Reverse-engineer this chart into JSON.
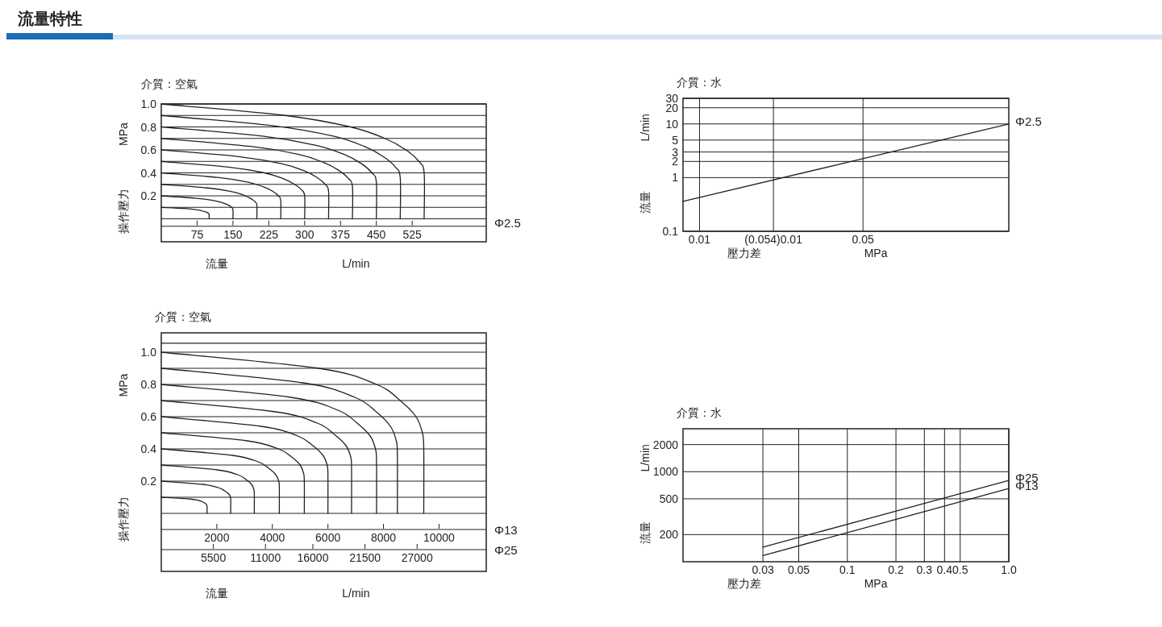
{
  "chart_data": [
    {
      "type": "line",
      "title": "流量特性",
      "subtitle": "介質：空氣",
      "xlabel": "流量 L/min",
      "ylabel": "操作壓力 MPa",
      "xlim": [
        0,
        680
      ],
      "ylim": [
        -0.2,
        1
      ],
      "xticks": [
        75,
        150,
        225,
        300,
        375,
        450,
        525
      ],
      "yticks": [
        {
          "value": 0,
          "label": null
        },
        {
          "value": 0.1,
          "label": null
        },
        0.2,
        {
          "value": 0.3,
          "label": null
        },
        0.4,
        {
          "value": 0.5,
          "label": null
        },
        0.6,
        {
          "value": 0.7,
          "label": null
        },
        0.8,
        {
          "value": 0.9,
          "label": null
        },
        {
          "value": 1,
          "label": "1.0"
        }
      ],
      "grid": "y",
      "ref_lines": [
        {
          "axis": "y",
          "value": -0.065
        }
      ],
      "annotations": [
        "Φ2.5"
      ],
      "series": [
        {
          "color": "#222222",
          "x": [
            0,
            47,
            72,
            85,
            93,
            98,
            100,
            100
          ],
          "values": [
            0.1,
            0.09,
            0.08,
            0.07,
            0.06,
            0.05,
            0.04,
            0
          ]
        },
        {
          "color": "#222222",
          "x": [
            0,
            71,
            108,
            128,
            140,
            147,
            150,
            150
          ],
          "values": [
            0.2,
            0.18,
            0.16,
            0.14,
            0.12,
            0.1,
            0.08,
            0
          ]
        },
        {
          "color": "#222222",
          "x": [
            0,
            94,
            144,
            170,
            186,
            196,
            200,
            200
          ],
          "values": [
            0.3,
            0.27,
            0.24,
            0.21,
            0.18,
            0.15,
            0.12,
            0
          ]
        },
        {
          "color": "#222222",
          "x": [
            0,
            118,
            180,
            213,
            233,
            245,
            250,
            250
          ],
          "values": [
            0.4,
            0.36,
            0.32,
            0.28,
            0.24,
            0.2,
            0.16,
            0
          ]
        },
        {
          "color": "#222222",
          "x": [
            0,
            141,
            216,
            255,
            279,
            294,
            300,
            300
          ],
          "values": [
            0.5,
            0.45,
            0.4,
            0.35,
            0.3,
            0.25,
            0.2,
            0
          ]
        },
        {
          "color": "#222222",
          "x": [
            0,
            165,
            252,
            298,
            326,
            343,
            350,
            350
          ],
          "values": [
            0.6,
            0.54,
            0.48,
            0.42,
            0.36,
            0.3,
            0.24,
            0
          ]
        },
        {
          "color": "#222222",
          "x": [
            0,
            188,
            288,
            340,
            372,
            392,
            400,
            400
          ],
          "values": [
            0.7,
            0.63,
            0.56,
            0.49,
            0.42,
            0.35,
            0.28,
            0
          ]
        },
        {
          "color": "#222222",
          "x": [
            0,
            212,
            324,
            383,
            419,
            441,
            450,
            450
          ],
          "values": [
            0.8,
            0.72,
            0.64,
            0.56,
            0.48,
            0.4,
            0.32,
            0
          ]
        },
        {
          "color": "#222222",
          "x": [
            0,
            235,
            360,
            425,
            465,
            490,
            500,
            500
          ],
          "values": [
            0.9,
            0.81,
            0.72,
            0.63,
            0.54,
            0.45,
            0.36,
            0
          ]
        },
        {
          "color": "#222222",
          "x": [
            0,
            259,
            396,
            468,
            512,
            539,
            550,
            550
          ],
          "values": [
            1,
            0.9,
            0.8,
            0.7,
            0.6,
            0.5,
            0.4,
            0
          ]
        }
      ]
    },
    {
      "type": "line",
      "title": "介質：水",
      "xlabel": "壓力差 MPa",
      "ylabel": "流量 L/min",
      "log": "xy",
      "xlim": [
        0.0085,
        0.21
      ],
      "ylim": [
        0.1,
        30
      ],
      "xticks": [
        0.01,
        {
          "value": 0.0207,
          "label": "(0.054)0.01"
        },
        0.05
      ],
      "yticks": [
        0.1,
        1,
        2,
        3,
        5,
        10,
        20,
        30
      ],
      "grid": true,
      "series": [
        {
          "name": "Φ2.5",
          "color": "#222222",
          "x": [
            0.0085,
            0.21
          ],
          "values": [
            0.36,
            10
          ]
        }
      ]
    },
    {
      "type": "line",
      "title": "介質：空氣",
      "xlabel": "流量 L/min",
      "ylabel": "操作壓力 MPa",
      "xlim": [
        0,
        11700
      ],
      "ylim": [
        -0.36,
        1.12
      ],
      "xticks": [
        2000,
        4000,
        6000,
        8000,
        10000
      ],
      "x2lim": [
        0,
        34300
      ],
      "x2ticks": [
        5500,
        11000,
        16000,
        21500,
        27000
      ],
      "yticks": [
        {
          "value": 0,
          "label": null
        },
        {
          "value": 0.1,
          "label": null
        },
        0.2,
        {
          "value": 0.3,
          "label": null
        },
        0.4,
        {
          "value": 0.5,
          "label": null
        },
        0.6,
        {
          "value": 0.7,
          "label": null
        },
        0.8,
        {
          "value": 0.9,
          "label": null
        },
        {
          "value": 1,
          "label": "1.0"
        }
      ],
      "grid": "y",
      "ref_lines": [
        {
          "axis": "y",
          "value": 1.056
        },
        {
          "axis": "y",
          "value": -0.1
        },
        {
          "axis": "y",
          "value": -0.225
        }
      ],
      "annotations": [
        "Φ13",
        "Φ25"
      ],
      "series": [
        {
          "color": "#222222",
          "x": [
            0,
            990,
            1350,
            1500,
            1600,
            1640,
            1650,
            1650
          ],
          "values": [
            0.1,
            0.09,
            0.08,
            0.07,
            0.06,
            0.05,
            0.04,
            0
          ]
        },
        {
          "color": "#222222",
          "x": [
            0,
            1500,
            2050,
            2280,
            2430,
            2490,
            2500,
            2500
          ],
          "values": [
            0.2,
            0.18,
            0.16,
            0.14,
            0.12,
            0.1,
            0.08,
            0
          ]
        },
        {
          "color": "#222222",
          "x": [
            0,
            2010,
            2750,
            3050,
            3250,
            3330,
            3350,
            3350
          ],
          "values": [
            0.3,
            0.27,
            0.24,
            0.21,
            0.18,
            0.15,
            0.12,
            0
          ]
        },
        {
          "color": "#222222",
          "x": [
            0,
            2550,
            3490,
            3870,
            4120,
            4230,
            4250,
            4250
          ],
          "values": [
            0.4,
            0.36,
            0.32,
            0.28,
            0.24,
            0.2,
            0.16,
            0
          ]
        },
        {
          "color": "#222222",
          "x": [
            0,
            3090,
            4220,
            4690,
            5000,
            5120,
            5150,
            5150
          ],
          "values": [
            0.5,
            0.45,
            0.4,
            0.35,
            0.3,
            0.25,
            0.2,
            0
          ]
        },
        {
          "color": "#222222",
          "x": [
            0,
            3600,
            4920,
            5460,
            5820,
            5970,
            6000,
            6000
          ],
          "values": [
            0.6,
            0.54,
            0.48,
            0.42,
            0.36,
            0.3,
            0.24,
            0
          ]
        },
        {
          "color": "#222222",
          "x": [
            0,
            4110,
            5620,
            6230,
            6650,
            6820,
            6850,
            6850
          ],
          "values": [
            0.7,
            0.63,
            0.56,
            0.49,
            0.42,
            0.35,
            0.28,
            0
          ]
        },
        {
          "color": "#222222",
          "x": [
            0,
            4650,
            6360,
            7050,
            7520,
            7710,
            7750,
            7750
          ],
          "values": [
            0.8,
            0.72,
            0.64,
            0.56,
            0.48,
            0.4,
            0.32,
            0
          ]
        },
        {
          "color": "#222222",
          "x": [
            0,
            5100,
            6970,
            7740,
            8250,
            8460,
            8500,
            8500
          ],
          "values": [
            0.9,
            0.81,
            0.72,
            0.63,
            0.54,
            0.45,
            0.36,
            0
          ]
        },
        {
          "color": "#222222",
          "x": [
            0,
            5670,
            7750,
            8600,
            9170,
            9400,
            9450,
            9450
          ],
          "values": [
            1,
            0.9,
            0.8,
            0.7,
            0.6,
            0.5,
            0.4,
            0
          ]
        }
      ]
    },
    {
      "type": "line",
      "title": "介質：水",
      "xlabel": "壓力差 MPa",
      "ylabel": "流量 L/min",
      "log": "xy",
      "xlim": [
        0.0096,
        1
      ],
      "ylim": [
        100,
        3000
      ],
      "xticks": [
        0.03,
        0.05,
        0.1,
        0.2,
        0.3,
        0.4,
        0.5,
        {
          "value": 1,
          "label": "1.0"
        }
      ],
      "yticks": [
        200,
        500,
        1000,
        2000
      ],
      "grid": true,
      "series": [
        {
          "name": "Φ25",
          "color": "#222222",
          "x": [
            0.03,
            1
          ],
          "values": [
            145,
            800
          ]
        },
        {
          "name": "Φ13",
          "color": "#222222",
          "x": [
            0.03,
            1
          ],
          "values": [
            117,
            650
          ]
        }
      ]
    }
  ]
}
